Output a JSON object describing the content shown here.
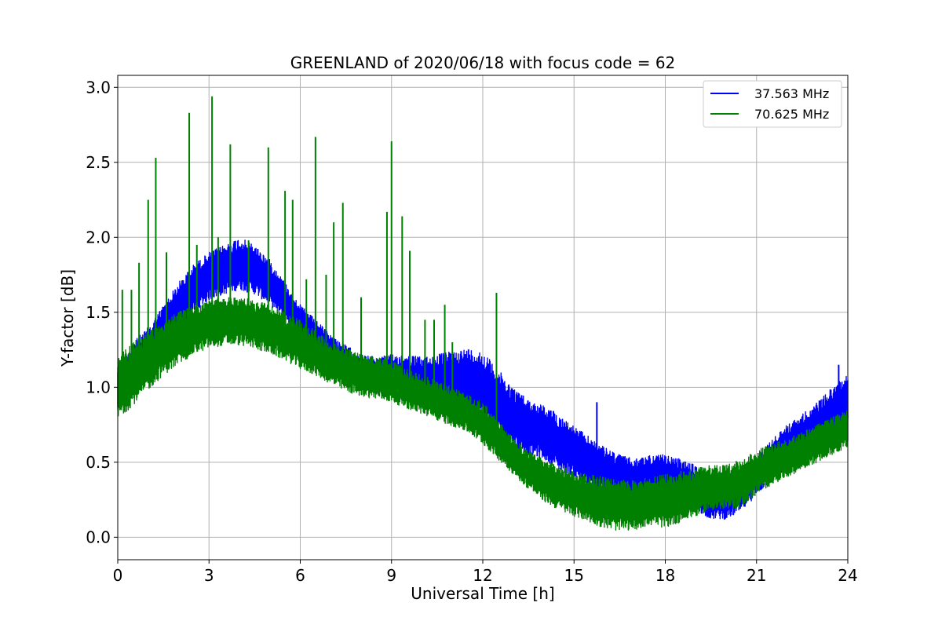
{
  "chart_data": {
    "type": "line",
    "title": "GREENLAND of 2020/06/18 with focus code = 62",
    "xlabel": "Universal Time [h]",
    "ylabel": "Y-factor [dB]",
    "xlim": [
      0,
      24
    ],
    "ylim": [
      -0.15,
      3.08
    ],
    "xticks": [
      "0",
      "3",
      "6",
      "9",
      "12",
      "15",
      "18",
      "21",
      "24"
    ],
    "yticks": [
      "0.0",
      "0.5",
      "1.0",
      "1.5",
      "2.0",
      "2.5",
      "3.0"
    ],
    "grid": true,
    "legend_position": "top-right",
    "colors": {
      "s1": "#0000ff",
      "s2": "#008000"
    },
    "series": [
      {
        "name": "37.563 MHz",
        "color": "#0000ff",
        "x": [
          0,
          0.5,
          1,
          1.5,
          2,
          2.5,
          3,
          3.5,
          4,
          4.5,
          5,
          5.5,
          6,
          6.5,
          7,
          7.5,
          8,
          8.5,
          9,
          9.5,
          10,
          10.5,
          11,
          11.5,
          12,
          12.5,
          13,
          13.5,
          14,
          14.5,
          15,
          15.5,
          16,
          16.5,
          17,
          17.5,
          18,
          18.5,
          19,
          19.5,
          20,
          20.5,
          21,
          21.5,
          22,
          22.5,
          23,
          23.5,
          24
        ],
        "low": [
          0.85,
          0.95,
          1.05,
          1.2,
          1.35,
          1.5,
          1.58,
          1.62,
          1.65,
          1.62,
          1.55,
          1.45,
          1.35,
          1.25,
          1.15,
          1.05,
          0.98,
          0.95,
          0.93,
          0.9,
          0.88,
          0.87,
          0.88,
          0.86,
          0.78,
          0.68,
          0.6,
          0.55,
          0.52,
          0.45,
          0.4,
          0.33,
          0.28,
          0.25,
          0.24,
          0.25,
          0.23,
          0.22,
          0.18,
          0.12,
          0.12,
          0.17,
          0.28,
          0.38,
          0.45,
          0.52,
          0.6,
          0.68,
          0.75
        ],
        "high": [
          1.15,
          1.3,
          1.4,
          1.55,
          1.7,
          1.82,
          1.9,
          1.95,
          2.0,
          1.95,
          1.85,
          1.7,
          1.55,
          1.45,
          1.35,
          1.28,
          1.22,
          1.2,
          1.22,
          1.22,
          1.2,
          1.22,
          1.24,
          1.26,
          1.24,
          1.12,
          1.0,
          0.92,
          0.88,
          0.82,
          0.74,
          0.67,
          0.6,
          0.55,
          0.52,
          0.55,
          0.55,
          0.52,
          0.48,
          0.43,
          0.4,
          0.45,
          0.55,
          0.65,
          0.75,
          0.82,
          0.9,
          1.0,
          1.1
        ]
      },
      {
        "name": "70.625 MHz",
        "color": "#008000",
        "x": [
          0,
          0.5,
          1,
          1.5,
          2,
          2.5,
          3,
          3.5,
          4,
          4.5,
          5,
          5.5,
          6,
          6.5,
          7,
          7.5,
          8,
          8.5,
          9,
          9.5,
          10,
          10.5,
          11,
          11.5,
          12,
          12.5,
          13,
          13.5,
          14,
          14.5,
          15,
          15.5,
          16,
          16.5,
          17,
          17.5,
          18,
          18.5,
          19,
          19.5,
          20,
          20.5,
          21,
          21.5,
          22,
          22.5,
          23,
          23.5,
          24
        ],
        "low": [
          0.78,
          0.88,
          0.98,
          1.08,
          1.15,
          1.22,
          1.26,
          1.28,
          1.28,
          1.26,
          1.22,
          1.18,
          1.12,
          1.08,
          1.02,
          0.97,
          0.94,
          0.92,
          0.9,
          0.86,
          0.82,
          0.78,
          0.74,
          0.7,
          0.62,
          0.52,
          0.42,
          0.32,
          0.24,
          0.18,
          0.14,
          0.1,
          0.06,
          0.04,
          0.05,
          0.08,
          0.06,
          0.1,
          0.14,
          0.18,
          0.18,
          0.2,
          0.28,
          0.35,
          0.4,
          0.45,
          0.5,
          0.55,
          0.6
        ],
        "high": [
          1.2,
          1.3,
          1.38,
          1.45,
          1.5,
          1.55,
          1.58,
          1.6,
          1.6,
          1.58,
          1.56,
          1.5,
          1.45,
          1.38,
          1.3,
          1.26,
          1.22,
          1.2,
          1.18,
          1.12,
          1.08,
          1.04,
          1.0,
          0.95,
          0.9,
          0.78,
          0.66,
          0.58,
          0.52,
          0.48,
          0.44,
          0.42,
          0.4,
          0.38,
          0.38,
          0.4,
          0.42,
          0.44,
          0.46,
          0.48,
          0.48,
          0.52,
          0.58,
          0.62,
          0.66,
          0.7,
          0.75,
          0.8,
          0.85
        ]
      }
    ],
    "peaks": [
      {
        "x": 0.15,
        "y": 1.65,
        "series": "70.625 MHz"
      },
      {
        "x": 0.45,
        "y": 1.65,
        "series": "70.625 MHz"
      },
      {
        "x": 0.7,
        "y": 1.83,
        "series": "70.625 MHz"
      },
      {
        "x": 1.0,
        "y": 2.25,
        "series": "70.625 MHz"
      },
      {
        "x": 1.25,
        "y": 2.53,
        "series": "70.625 MHz"
      },
      {
        "x": 1.6,
        "y": 1.9,
        "series": "70.625 MHz"
      },
      {
        "x": 2.35,
        "y": 2.83,
        "series": "70.625 MHz"
      },
      {
        "x": 2.6,
        "y": 1.95,
        "series": "70.625 MHz"
      },
      {
        "x": 3.1,
        "y": 2.94,
        "series": "70.625 MHz"
      },
      {
        "x": 3.3,
        "y": 2.0,
        "series": "70.625 MHz"
      },
      {
        "x": 3.7,
        "y": 2.62,
        "series": "70.625 MHz"
      },
      {
        "x": 4.3,
        "y": 1.98,
        "series": "70.625 MHz"
      },
      {
        "x": 4.95,
        "y": 2.6,
        "series": "70.625 MHz"
      },
      {
        "x": 5.5,
        "y": 2.31,
        "series": "70.625 MHz"
      },
      {
        "x": 5.75,
        "y": 2.25,
        "series": "70.625 MHz"
      },
      {
        "x": 6.2,
        "y": 1.72,
        "series": "70.625 MHz"
      },
      {
        "x": 6.5,
        "y": 2.67,
        "series": "70.625 MHz"
      },
      {
        "x": 6.85,
        "y": 1.75,
        "series": "70.625 MHz"
      },
      {
        "x": 7.1,
        "y": 2.1,
        "series": "70.625 MHz"
      },
      {
        "x": 7.4,
        "y": 2.23,
        "series": "70.625 MHz"
      },
      {
        "x": 8.0,
        "y": 1.6,
        "series": "70.625 MHz"
      },
      {
        "x": 8.85,
        "y": 2.17,
        "series": "70.625 MHz"
      },
      {
        "x": 9.0,
        "y": 2.64,
        "series": "70.625 MHz"
      },
      {
        "x": 9.35,
        "y": 2.14,
        "series": "70.625 MHz"
      },
      {
        "x": 9.6,
        "y": 1.91,
        "series": "70.625 MHz"
      },
      {
        "x": 10.1,
        "y": 1.45,
        "series": "70.625 MHz"
      },
      {
        "x": 10.4,
        "y": 1.45,
        "series": "70.625 MHz"
      },
      {
        "x": 10.75,
        "y": 1.55,
        "series": "70.625 MHz"
      },
      {
        "x": 11.0,
        "y": 1.3,
        "series": "70.625 MHz"
      },
      {
        "x": 12.45,
        "y": 1.63,
        "series": "70.625 MHz"
      },
      {
        "x": 15.75,
        "y": 0.9,
        "series": "37.563 MHz"
      },
      {
        "x": 23.7,
        "y": 1.15,
        "series": "37.563 MHz"
      }
    ]
  }
}
